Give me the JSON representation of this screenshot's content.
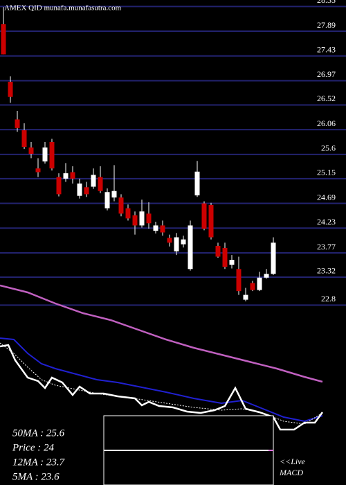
{
  "chart_data": {
    "type": "candlestick",
    "title": "AMEX  QID munafa.munafasutra.com",
    "up_color": "#ffffff",
    "down_color": "#cc0000",
    "grid_color": "#22226e",
    "grid": true,
    "ylim": [
      22.74,
      28.47
    ],
    "yticks": [
      28.35,
      27.89,
      27.43,
      26.97,
      26.52,
      26.06,
      25.6,
      25.15,
      24.69,
      24.23,
      23.77,
      23.32,
      22.8
    ],
    "series": [
      {
        "name": "open",
        "values": [
          28.02,
          26.95,
          26.25,
          26.05,
          25.73,
          25.34,
          25.47,
          25.83,
          25.18,
          25.15,
          25.27,
          24.83,
          24.99,
          25.0,
          25.18,
          24.6,
          24.8,
          24.8,
          24.6,
          24.47,
          24.28,
          24.5,
          24.18,
          24.28,
          24.05,
          23.8,
          23.93,
          23.47,
          24.84,
          24.69,
          24.66,
          23.9,
          23.86,
          23.55,
          23.47,
          22.9,
          23.21,
          23.08,
          23.31,
          23.38
        ]
      },
      {
        "name": "high",
        "values": [
          28.34,
          27.05,
          26.41,
          26.18,
          25.83,
          25.53,
          25.83,
          25.89,
          25.25,
          25.44,
          25.38,
          25.15,
          25.09,
          25.34,
          25.38,
          24.97,
          25.4,
          24.86,
          24.67,
          24.54,
          24.76,
          24.71,
          24.35,
          24.37,
          24.11,
          24.14,
          24.09,
          24.37,
          25.48,
          24.73,
          24.7,
          23.96,
          23.96,
          23.73,
          23.7,
          23.12,
          23.25,
          23.42,
          23.47,
          24.06
        ]
      },
      {
        "name": "low",
        "values": [
          27.46,
          26.56,
          26.02,
          25.7,
          25.53,
          25.18,
          25.43,
          25.3,
          24.82,
          25.09,
          25.06,
          24.78,
          24.81,
          24.96,
          24.88,
          24.56,
          24.73,
          24.45,
          24.37,
          24.11,
          24.24,
          24.22,
          24.13,
          24.09,
          23.89,
          23.73,
          23.87,
          23.44,
          24.81,
          24.19,
          24.02,
          23.68,
          23.47,
          23.48,
          22.99,
          22.87,
          23.06,
          23.06,
          23.29,
          23.36
        ]
      },
      {
        "name": "close",
        "values": [
          27.46,
          26.67,
          26.09,
          25.74,
          25.61,
          25.27,
          25.73,
          25.34,
          24.86,
          25.25,
          25.15,
          25.06,
          24.86,
          25.22,
          24.92,
          24.9,
          24.92,
          24.5,
          24.41,
          24.28,
          24.54,
          24.32,
          24.28,
          24.15,
          23.96,
          24.06,
          24.02,
          24.28,
          25.28,
          24.22,
          24.06,
          23.7,
          23.51,
          23.64,
          23.06,
          22.99,
          23.08,
          23.31,
          23.38,
          23.96
        ]
      }
    ],
    "stats": [
      "50MA : 25.6",
      "Price   : 24",
      "12MA : 23.7",
      "5MA  : 23.6"
    ],
    "macd_label": [
      "<<Live",
      "MACD"
    ]
  }
}
